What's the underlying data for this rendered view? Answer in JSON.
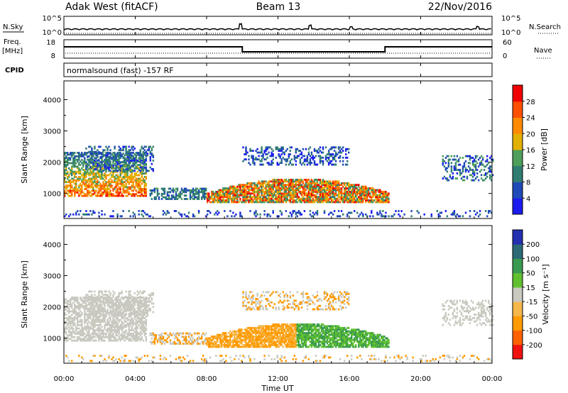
{
  "header": {
    "station": "Adak West (fitACF)",
    "beam": "Beam 13",
    "date": "22/Nov/2016"
  },
  "panels": {
    "noise": {
      "left_label": "N.Sky",
      "right_label": "N.Search",
      "left_ticks": [
        "10^5",
        "10^0"
      ],
      "right_ticks": [
        "10^5",
        "10^0"
      ]
    },
    "freq": {
      "left_label_1": "Freq.",
      "left_label_2": "[MHz]",
      "right_label": "Nave",
      "left_ticks": [
        "18",
        "8"
      ],
      "right_ticks": [
        "60",
        "0"
      ]
    },
    "cpid": {
      "left_label": "CPID",
      "text": "normalsound (fast) -157 RF"
    }
  },
  "chart_data": [
    {
      "type": "heatmap",
      "name": "Power",
      "ylabel": "Slant Range [km]",
      "xlabel": "Time UT",
      "yticks": [
        "4000",
        "3000",
        "2000",
        "1000"
      ],
      "ytick_values": [
        4000,
        3000,
        2000,
        1000
      ],
      "ylim": [
        200,
        4600
      ],
      "colorbar_label": "Power [dB]",
      "colorbar_ticks": [
        "28",
        "24",
        "20",
        "16",
        "12",
        "8",
        "4"
      ],
      "colorbar_tick_values": [
        28,
        24,
        20,
        16,
        12,
        8,
        4
      ],
      "colorbar_range": [
        0,
        32
      ],
      "colorbar_colors": [
        "#1b1bf0",
        "#1f49b8",
        "#2f7c72",
        "#4e9f5a",
        "#e2b000",
        "#ff8a00",
        "#ff4f00",
        "#f00000"
      ]
    },
    {
      "type": "heatmap",
      "name": "Velocity",
      "ylabel": "Slant Range [km]",
      "xlabel": "Time UT",
      "yticks": [
        "4000",
        "3000",
        "2000",
        "1000"
      ],
      "ytick_values": [
        4000,
        3000,
        2000,
        1000
      ],
      "ylim": [
        200,
        4600
      ],
      "colorbar_label": "Velocity [m s⁻¹]",
      "colorbar_ticks": [
        "200",
        "100",
        "50",
        "15",
        "-15",
        "-50",
        "-100",
        "-200"
      ],
      "colorbar_colors": [
        "#f01010",
        "#ff6000",
        "#ff9a00",
        "#f5b64a",
        "#c9c9c0",
        "#60c030",
        "#3a9a50",
        "#2c6a78",
        "#2330b0"
      ]
    }
  ],
  "time_axis": {
    "xlabel": "Time UT",
    "ticks": [
      "00:00",
      "04:00",
      "08:00",
      "12:00",
      "16:00",
      "20:00",
      "00:00"
    ],
    "tick_hours": [
      0,
      4,
      8,
      12,
      16,
      20,
      24
    ],
    "range_hours": [
      0,
      24
    ]
  },
  "colors": {
    "axis": "#000000",
    "background": "#ffffff"
  }
}
